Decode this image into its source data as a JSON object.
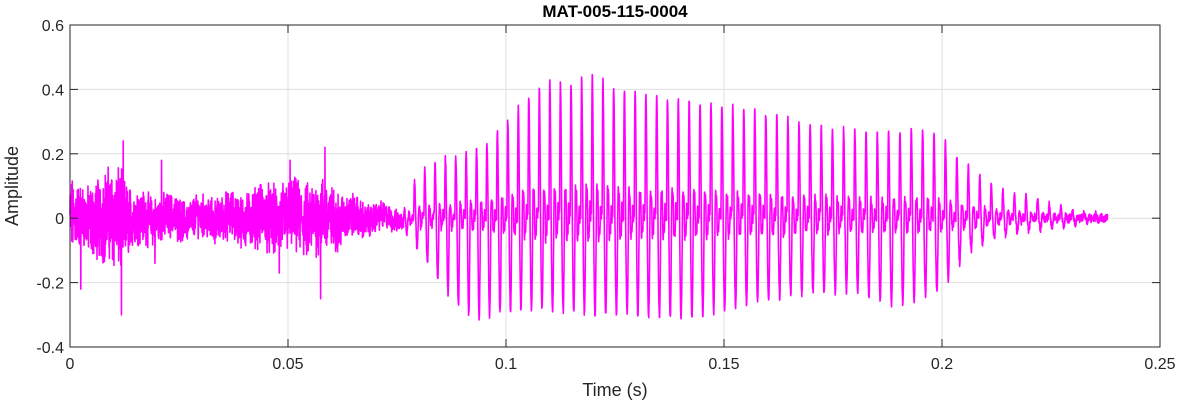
{
  "chart_data": {
    "type": "line",
    "title": "MAT-005-115-0004",
    "xlabel": "Time (s)",
    "ylabel": "Amplitude",
    "xlim": [
      0,
      0.25
    ],
    "ylim": [
      -0.4,
      0.6
    ],
    "xticks": [
      0,
      0.05,
      0.1,
      0.15,
      0.2,
      0.25
    ],
    "xtick_labels": [
      "0",
      "0.05",
      "0.1",
      "0.15",
      "0.2",
      "0.25"
    ],
    "yticks": [
      -0.4,
      -0.2,
      0,
      0.2,
      0.4,
      0.6
    ],
    "ytick_labels": [
      "-0.4",
      "-0.2",
      "0",
      "0.2",
      "0.4",
      "0.6"
    ],
    "grid": true,
    "box": true,
    "line_color": "#ff00ff",
    "duration": 0.238,
    "segments": [
      {
        "t_start": 0,
        "t_end": 0.0765,
        "kind": "noise",
        "envelope_t": [
          0,
          0.003,
          0.007,
          0.011,
          0.014,
          0.02,
          0.028,
          0.035,
          0.04,
          0.045,
          0.05,
          0.055,
          0.058,
          0.062,
          0.068,
          0.072,
          0.0765
        ],
        "envelope_a": [
          0.12,
          0.09,
          0.13,
          0.16,
          0.09,
          0.07,
          0.06,
          0.07,
          0.08,
          0.1,
          0.11,
          0.11,
          0.12,
          0.08,
          0.05,
          0.04,
          0.03
        ],
        "spikes": [
          {
            "t": 0.0025,
            "v": -0.22
          },
          {
            "t": 0.0118,
            "v": -0.3
          },
          {
            "t": 0.0122,
            "v": 0.24
          },
          {
            "t": 0.0195,
            "v": -0.14
          },
          {
            "t": 0.021,
            "v": 0.18
          },
          {
            "t": 0.048,
            "v": -0.17
          },
          {
            "t": 0.0505,
            "v": 0.18
          },
          {
            "t": 0.0575,
            "v": -0.25
          },
          {
            "t": 0.0585,
            "v": 0.22
          }
        ]
      },
      {
        "t_start": 0.0765,
        "t_end": 0.238,
        "kind": "periodic",
        "pitch_period_start": 0.00235,
        "pitch_period_end": 0.0027,
        "peak_t": [
          0.0765,
          0.08,
          0.085,
          0.09,
          0.095,
          0.1,
          0.105,
          0.11,
          0.115,
          0.12,
          0.125,
          0.13,
          0.14,
          0.15,
          0.16,
          0.17,
          0.18,
          0.19,
          0.195,
          0.2,
          0.205,
          0.21,
          0.215,
          0.22,
          0.225,
          0.23,
          0.238
        ],
        "peak_v": [
          0.02,
          0.15,
          0.18,
          0.2,
          0.23,
          0.3,
          0.38,
          0.42,
          0.42,
          0.44,
          0.41,
          0.39,
          0.37,
          0.35,
          0.32,
          0.29,
          0.27,
          0.26,
          0.28,
          0.25,
          0.17,
          0.12,
          0.08,
          0.07,
          0.04,
          0.02,
          0.01
        ],
        "trough_t": [
          0.0765,
          0.08,
          0.085,
          0.09,
          0.093,
          0.1,
          0.11,
          0.12,
          0.13,
          0.14,
          0.15,
          0.16,
          0.17,
          0.18,
          0.19,
          0.2,
          0.205,
          0.21,
          0.215,
          0.22,
          0.23,
          0.238
        ],
        "trough_v": [
          -0.03,
          -0.1,
          -0.2,
          -0.29,
          -0.31,
          -0.29,
          -0.28,
          -0.3,
          -0.3,
          -0.31,
          -0.29,
          -0.25,
          -0.23,
          -0.23,
          -0.27,
          -0.22,
          -0.12,
          -0.07,
          -0.05,
          -0.04,
          -0.02,
          0.0
        ]
      }
    ]
  }
}
